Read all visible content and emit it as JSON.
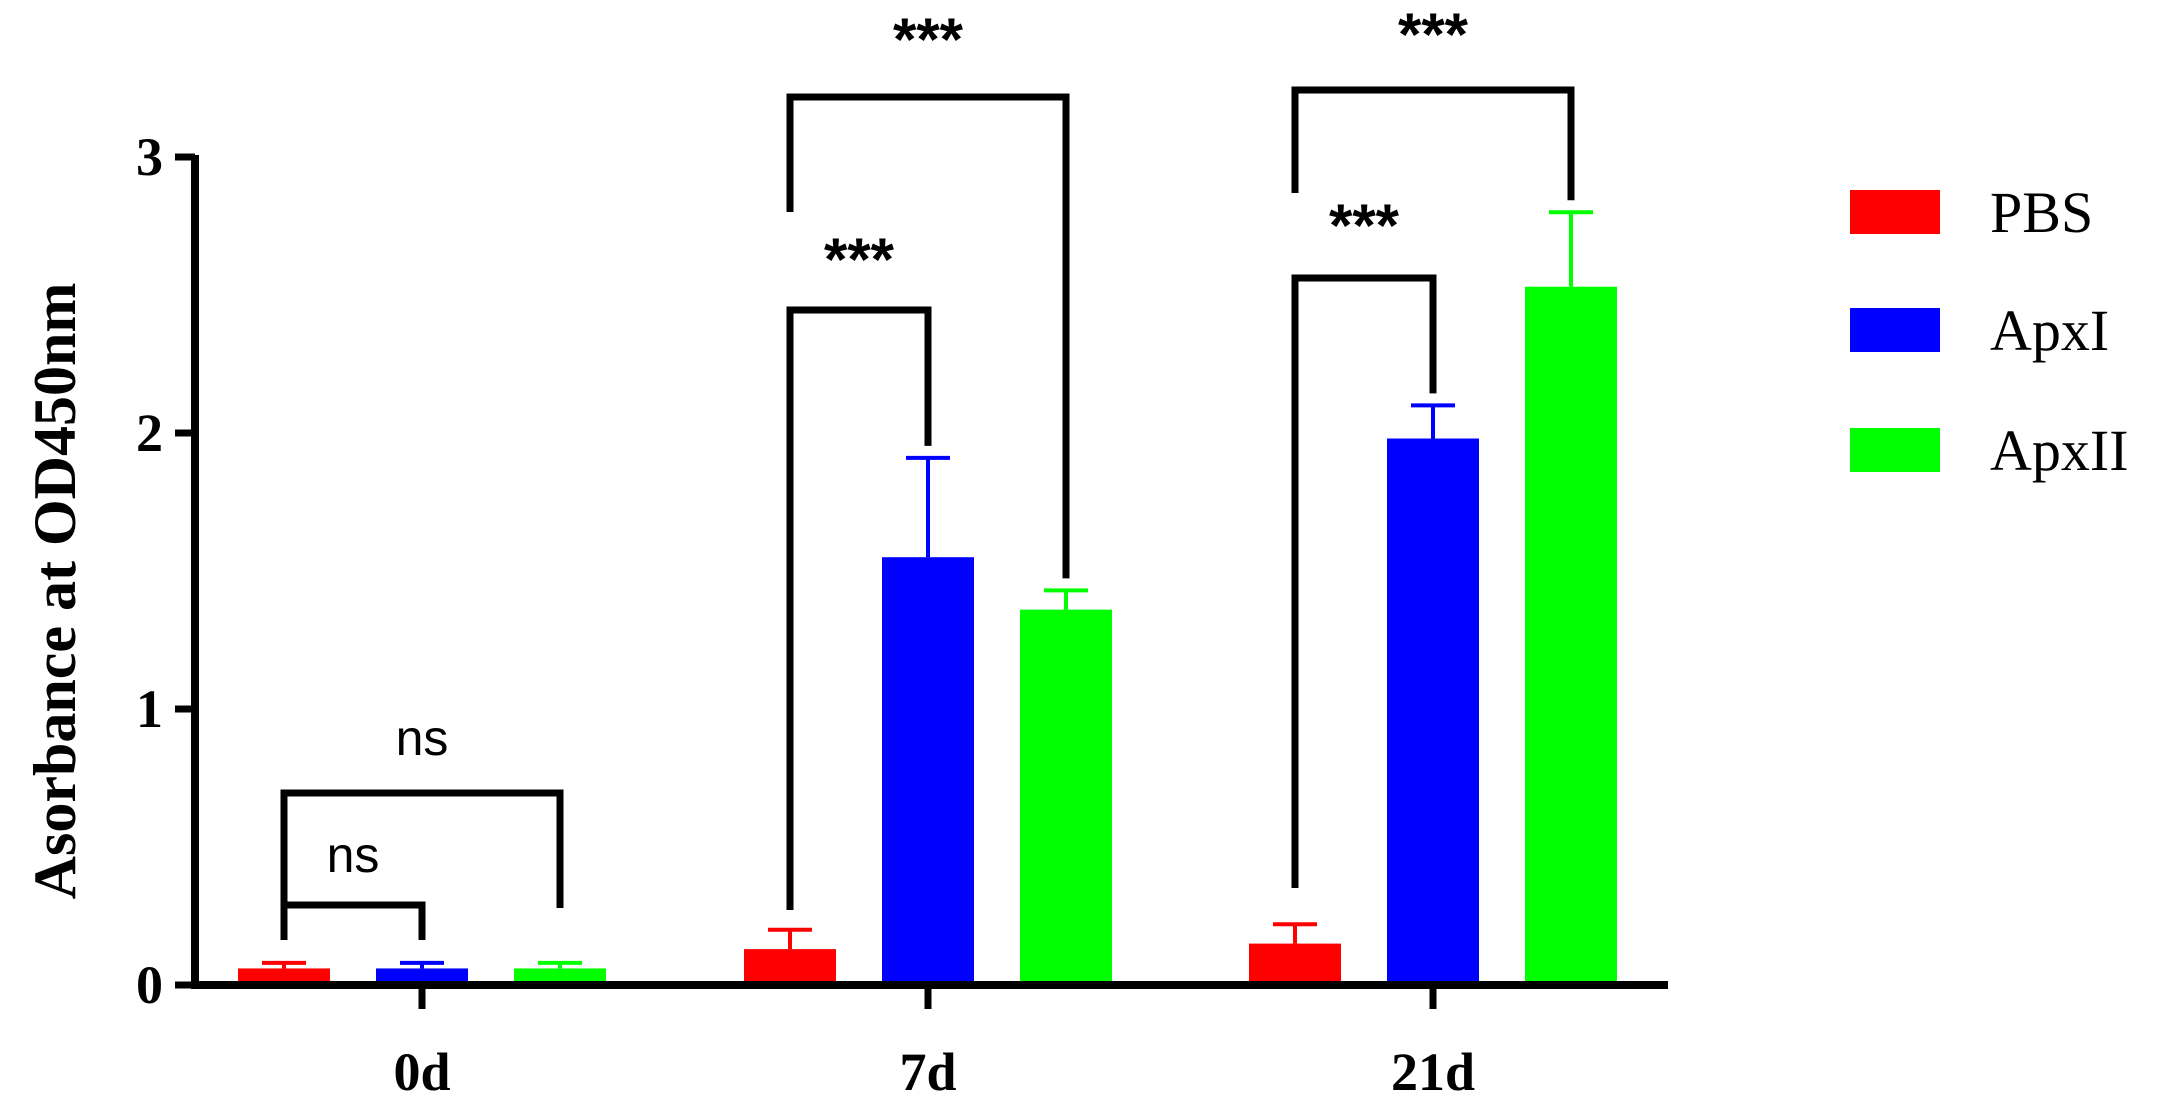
{
  "chart_data": {
    "type": "bar",
    "title": "",
    "xlabel": "",
    "ylabel": "Asorbance at OD450nm",
    "ylim": [
      0,
      3
    ],
    "yticks": [
      "0",
      "1",
      "2",
      "3"
    ],
    "categories": [
      "0d",
      "7d",
      "21d"
    ],
    "series": [
      {
        "name": "PBS",
        "color": "#ff0000",
        "values": [
          0.06,
          0.13,
          0.15
        ],
        "errors": [
          0.02,
          0.07,
          0.07
        ]
      },
      {
        "name": "ApxI",
        "color": "#0000ff",
        "values": [
          0.06,
          1.55,
          1.98
        ],
        "errors": [
          0.02,
          0.36,
          0.12
        ]
      },
      {
        "name": "ApxII",
        "color": "#00ff00",
        "values": [
          0.06,
          1.36,
          2.53
        ],
        "errors": [
          0.02,
          0.07,
          0.27
        ]
      }
    ],
    "legend_position": "right",
    "significance": [
      {
        "category": 0,
        "from": 0,
        "to": 1,
        "label": "ns"
      },
      {
        "category": 0,
        "from": 0,
        "to": 2,
        "label": "ns"
      },
      {
        "category": 1,
        "from": 0,
        "to": 1,
        "label": "***"
      },
      {
        "category": 1,
        "from": 0,
        "to": 2,
        "label": "***"
      },
      {
        "category": 2,
        "from": 0,
        "to": 1,
        "label": "***"
      },
      {
        "category": 2,
        "from": 0,
        "to": 2,
        "label": "***"
      }
    ]
  }
}
